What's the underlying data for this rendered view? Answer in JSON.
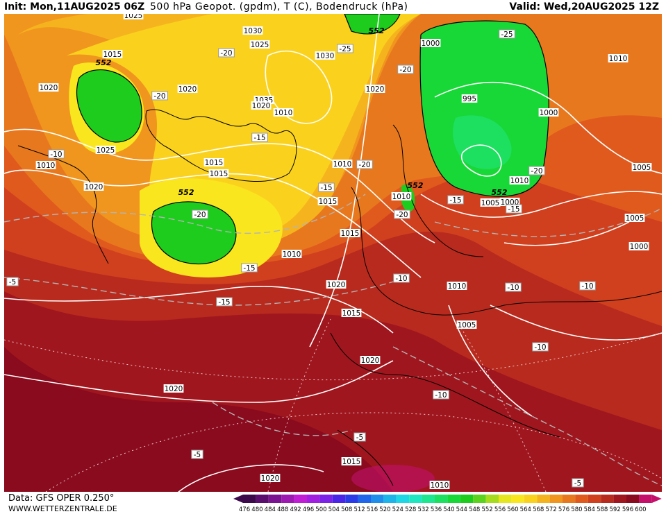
{
  "header": {
    "init": "Init: Mon,11AUG2025 06Z",
    "title": "500 hPa Geopot. (gpdm), T (C), Bodendruck (hPa)",
    "valid": "Valid: Wed,20AUG2025 12Z"
  },
  "footer": {
    "data_source": "Data: GFS OPER 0.250°",
    "website": "WWW.WETTERZENTRALE.DE"
  },
  "legend": {
    "values": [
      "476",
      "480",
      "484",
      "488",
      "492",
      "496",
      "500",
      "504",
      "508",
      "512",
      "516",
      "520",
      "524",
      "528",
      "532",
      "536",
      "540",
      "544",
      "548",
      "552",
      "556",
      "560",
      "564",
      "568",
      "572",
      "576",
      "580",
      "584",
      "588",
      "592",
      "596",
      "600"
    ],
    "colors": [
      "#3c0a4a",
      "#5a0f6e",
      "#7a1490",
      "#9c1ab2",
      "#c01ed4",
      "#a01fe0",
      "#7a22e6",
      "#4a25e8",
      "#2a3ce8",
      "#1f66ea",
      "#1e8eea",
      "#1eb4ea",
      "#1ed6e6",
      "#1ee6c0",
      "#1ee690",
      "#1ee060",
      "#18d838",
      "#1ecc1e",
      "#5ad21e",
      "#a6dc1e",
      "#e6e61e",
      "#fae61e",
      "#fad21e",
      "#f5b41e",
      "#f0961e",
      "#e8781e",
      "#e05a1e",
      "#d0401e",
      "#b82a1e",
      "#a0161e",
      "#8a0a1e",
      "#c4106a"
    ]
  },
  "map_labels": {
    "pressure": [
      "1025",
      "1015",
      "1020",
      "1010",
      "1030",
      "1025",
      "1030",
      "1020",
      "1020",
      "1035",
      "1020",
      "1010",
      "1015",
      "1015",
      "1025",
      "1020",
      "1010",
      "1015",
      "1010",
      "1015",
      "1010",
      "1020",
      "1015",
      "1020",
      "1010",
      "1005",
      "1000",
      "995",
      "1000",
      "1000",
      "1010",
      "1005",
      "1005",
      "1000",
      "1010",
      "1005",
      "1015",
      "1020",
      "1010",
      "1020"
    ],
    "temperature": [
      "-20",
      "-25",
      "-20",
      "-20",
      "-25",
      "-10",
      "-15",
      "-20",
      "-15",
      "-20",
      "-15",
      "-15",
      "-20",
      "-20",
      "-15",
      "-15",
      "-10",
      "-10",
      "-10",
      "-10",
      "-10",
      "-5",
      "-5",
      "-5",
      "-5"
    ],
    "geopotential": [
      "552",
      "552",
      "552",
      "552",
      "552"
    ]
  }
}
